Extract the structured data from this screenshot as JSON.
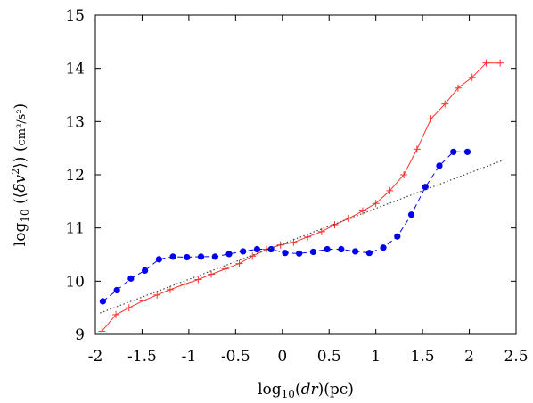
{
  "chart_data": {
    "type": "line",
    "xlabel": "log10(dr)(pc)",
    "ylabel": "log10(⟨δv²⟩) (cm²/s²)",
    "xlim": [
      -2,
      2.5
    ],
    "ylim": [
      9,
      15
    ],
    "xticks": [
      -2,
      -1.5,
      -1,
      -0.5,
      0,
      0.5,
      1,
      1.5,
      2,
      2.5
    ],
    "xtick_labels": [
      "-2",
      "-1.5",
      "-1",
      "-0.5",
      "0",
      "0.5",
      "1",
      "1.5",
      "2",
      "2.5"
    ],
    "yticks": [
      9,
      10,
      11,
      12,
      13,
      14,
      15
    ],
    "ytick_labels": [
      "9",
      "10",
      "11",
      "12",
      "13",
      "14",
      "15"
    ],
    "grid": false,
    "legend": "none",
    "series": [
      {
        "marker": "plus",
        "line_style": "solid",
        "color": "#ff3030",
        "x": [
          -1.93,
          -1.78,
          -1.64,
          -1.49,
          -1.34,
          -1.2,
          -1.05,
          -0.9,
          -0.76,
          -0.61,
          -0.46,
          -0.32,
          -0.17,
          -0.02,
          0.12,
          0.27,
          0.42,
          0.56,
          0.71,
          0.86,
          1.0,
          1.15,
          1.3,
          1.44,
          1.59,
          1.74,
          1.88,
          2.03,
          2.18,
          2.33
        ],
        "y": [
          9.06,
          9.37,
          9.5,
          9.63,
          9.74,
          9.84,
          9.94,
          10.03,
          10.13,
          10.23,
          10.33,
          10.47,
          10.6,
          10.68,
          10.73,
          10.83,
          10.93,
          11.06,
          11.18,
          11.32,
          11.46,
          11.7,
          12.0,
          12.48,
          13.05,
          13.33,
          13.63,
          13.83,
          14.1,
          14.1
        ]
      },
      {
        "marker": "circle",
        "line_style": "dashed",
        "color": "#0000ee",
        "x": [
          -1.92,
          -1.77,
          -1.62,
          -1.47,
          -1.32,
          -1.17,
          -1.02,
          -0.87,
          -0.72,
          -0.57,
          -0.42,
          -0.27,
          -0.12,
          0.03,
          0.18,
          0.33,
          0.48,
          0.63,
          0.78,
          0.93,
          1.08,
          1.23,
          1.38,
          1.53,
          1.68,
          1.83,
          1.98
        ],
        "y": [
          9.62,
          9.83,
          10.05,
          10.2,
          10.41,
          10.46,
          10.45,
          10.46,
          10.46,
          10.51,
          10.56,
          10.6,
          10.6,
          10.53,
          10.52,
          10.55,
          10.6,
          10.6,
          10.56,
          10.53,
          10.63,
          10.84,
          11.25,
          11.77,
          12.17,
          12.43,
          12.43
        ]
      },
      {
        "marker": "none",
        "line_style": "dotted",
        "color": "#444444",
        "x": [
          -1.95,
          2.4
        ],
        "y": [
          9.4,
          12.3
        ]
      }
    ]
  }
}
